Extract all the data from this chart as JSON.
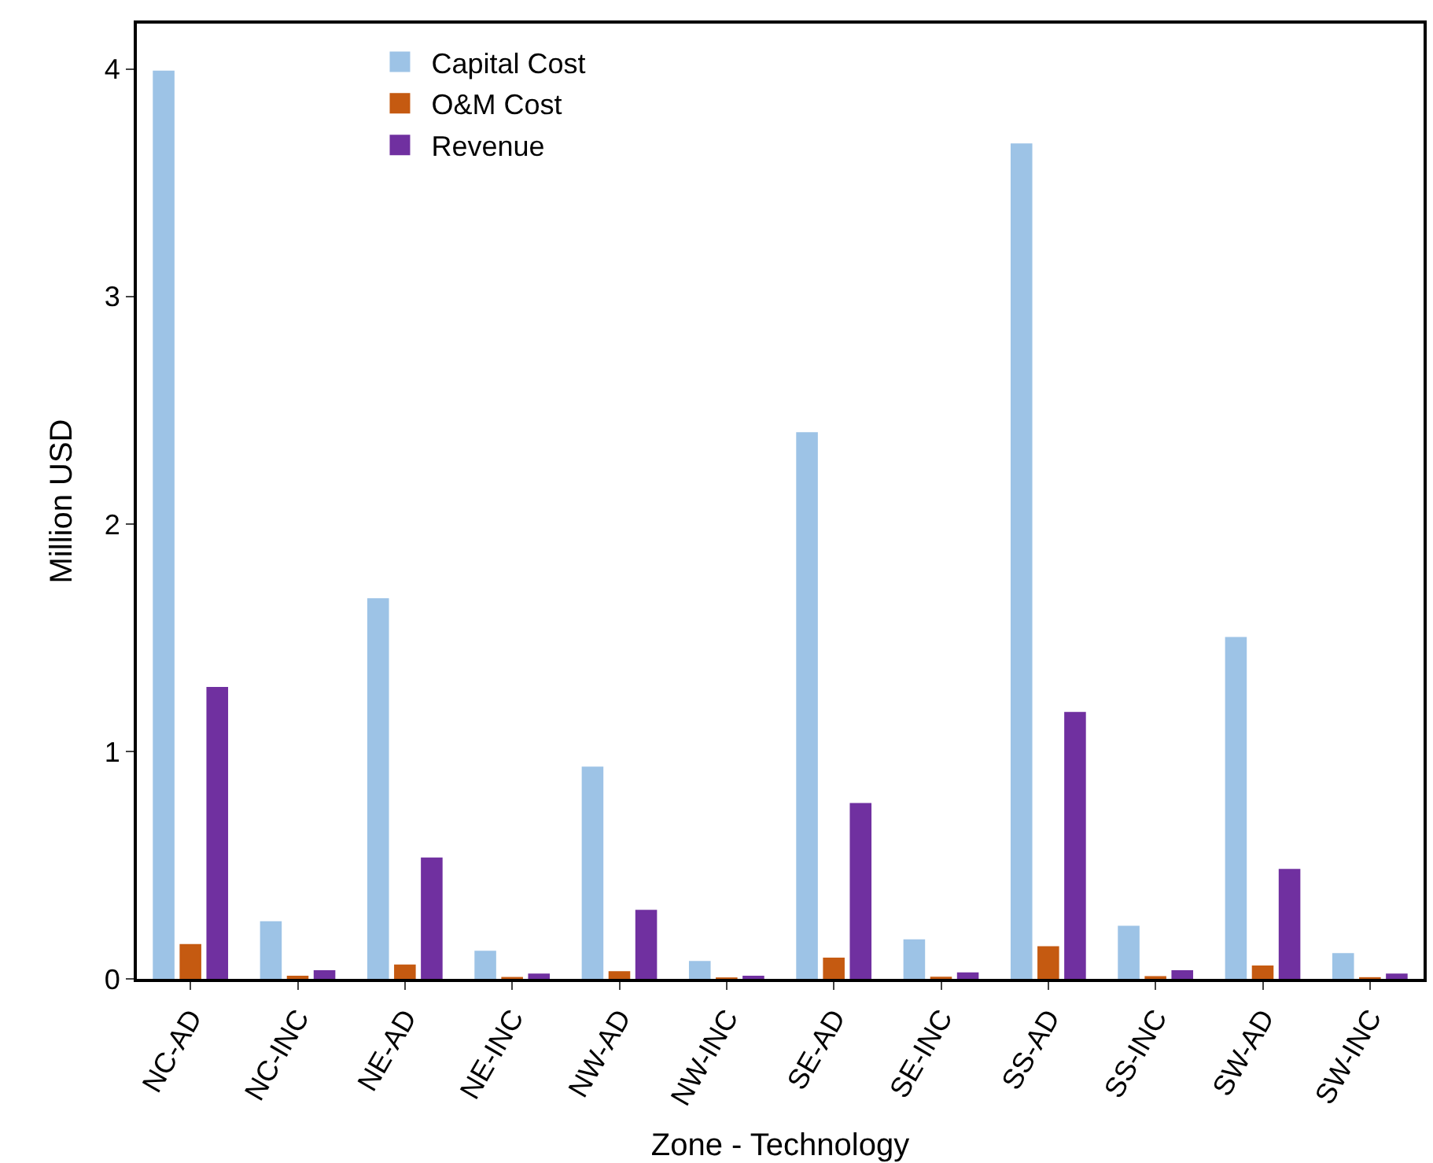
{
  "chart_data": {
    "type": "bar",
    "xlabel": "Zone - Technology",
    "ylabel": "Million USD",
    "categories": [
      "NC-AD",
      "NC-INC",
      "NE-AD",
      "NE-INC",
      "NW-AD",
      "NW-INC",
      "SE-AD",
      "SE-INC",
      "SS-AD",
      "SS-INC",
      "SW-AD",
      "SW-INC"
    ],
    "series": [
      {
        "name": "Capital Cost",
        "color": "#9dc3e6",
        "values": [
          3.99,
          0.25,
          1.67,
          0.12,
          0.93,
          0.075,
          2.4,
          0.17,
          3.67,
          0.23,
          1.5,
          0.11
        ]
      },
      {
        "name": "O&M Cost",
        "color": "#c55a11",
        "values": [
          0.15,
          0.01,
          0.06,
          0.005,
          0.03,
          0.003,
          0.09,
          0.006,
          0.14,
          0.009,
          0.055,
          0.004
        ]
      },
      {
        "name": "Revenue",
        "color": "#7030a0",
        "values": [
          1.28,
          0.035,
          0.53,
          0.02,
          0.3,
          0.01,
          0.77,
          0.025,
          1.17,
          0.035,
          0.48,
          0.02
        ]
      }
    ],
    "ylim": [
      0,
      4.2
    ],
    "yticks": [
      0,
      1,
      2,
      3,
      4
    ],
    "legend": "top left"
  }
}
